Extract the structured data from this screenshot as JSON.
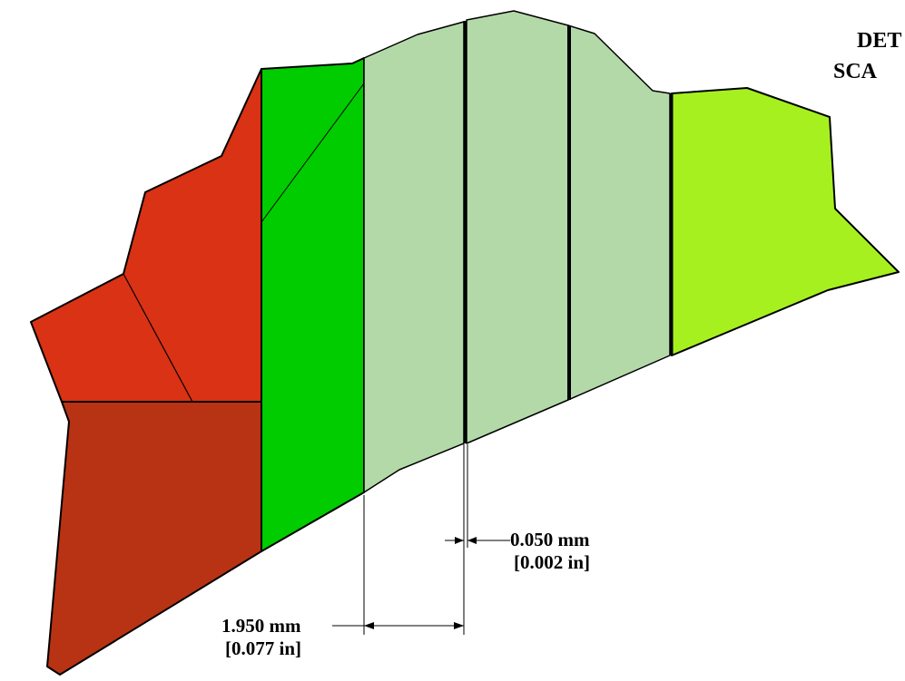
{
  "title": {
    "line1": "DET",
    "line2": "SCA"
  },
  "colors": {
    "red_upper": "#d93214",
    "red_lower": "#b83214",
    "green_bright": "#00cc00",
    "green_pale": "#b3d9a8",
    "green_lime": "#a6f020",
    "outline": "#000000"
  },
  "dimensions": {
    "thin": {
      "value": "0.050 mm",
      "alt": "[0.002 in]"
    },
    "wide": {
      "value": "1.950 mm",
      "alt": "[0.077 in]"
    }
  }
}
